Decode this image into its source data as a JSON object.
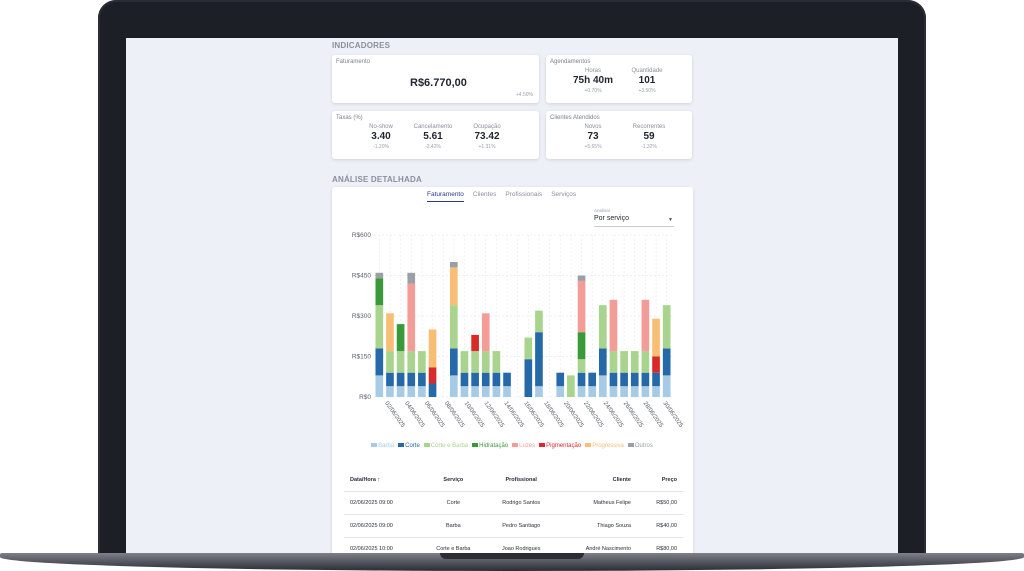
{
  "indicators": {
    "section_title": "INDICADORES",
    "faturamento": {
      "title": "Faturamento",
      "value": "R$6.770,00",
      "change": "+4.50%"
    },
    "agendamentos": {
      "title": "Agendamentos",
      "metrics": [
        {
          "label": "Horas",
          "value": "75h 40m",
          "change": "+0.70%"
        },
        {
          "label": "Quantidade",
          "value": "101",
          "change": "+3.50%"
        }
      ]
    },
    "taxas": {
      "title": "Taxas (%)",
      "metrics": [
        {
          "label": "No-show",
          "value": "3.40",
          "change": "-1.20%"
        },
        {
          "label": "Cancelamento",
          "value": "5.61",
          "change": "-2.42%"
        },
        {
          "label": "Ocupação",
          "value": "73.42",
          "change": "+1.31%"
        }
      ]
    },
    "clientes": {
      "title": "Clientes Atendidos",
      "metrics": [
        {
          "label": "Novos",
          "value": "73",
          "change": "+5.65%"
        },
        {
          "label": "Recorrentes",
          "value": "59",
          "change": "-1.32%"
        }
      ]
    }
  },
  "analysis": {
    "section_title": "ANÁLISE DETALHADA",
    "tabs": [
      "Faturamento",
      "Clientes",
      "Profissionais",
      "Serviços"
    ],
    "active_tab": 0,
    "select_label": "Analisar",
    "select_value": "Por serviço"
  },
  "colors": {
    "Barba": "#a8cbe5",
    "Corte": "#2669a8",
    "Corte e Barba": "#a8d48d",
    "Hidratação": "#3a9a3a",
    "Luzes": "#f39c98",
    "Pigmentação": "#d92a2a",
    "Progressiva": "#f7be74",
    "Outros": "#9aa0a6"
  },
  "chart_data": {
    "type": "bar",
    "stacked": true,
    "ylim": [
      0,
      600
    ],
    "yticks": [
      "R$0",
      "R$150",
      "R$300",
      "R$450",
      "R$600"
    ],
    "ytick_values": [
      0,
      150,
      300,
      450,
      600
    ],
    "xticks": [
      "02/06/2025",
      "04/06/2025",
      "06/06/2025",
      "08/06/2025",
      "10/06/2025",
      "12/06/2025",
      "14/06/2025",
      "16/06/2025",
      "18/06/2025",
      "20/06/2025",
      "22/06/2025",
      "24/06/2025",
      "26/06/2025",
      "28/06/2025",
      "30/06/2025"
    ],
    "grid": true,
    "legend_position": "bottom",
    "series_order": [
      "Barba",
      "Corte",
      "Corte e Barba",
      "Hidratação",
      "Luzes",
      "Pigmentação",
      "Progressiva",
      "Outros"
    ],
    "bars": [
      {
        "Barba": 80,
        "Corte": 100,
        "Corte e Barba": 160,
        "Hidratação": 100,
        "Outros": 20
      },
      {
        "Barba": 40,
        "Corte": 50,
        "Corte e Barba": 80,
        "Progressiva": 140
      },
      {
        "Barba": 40,
        "Corte": 50,
        "Corte e Barba": 80,
        "Hidratação": 100
      },
      {
        "Barba": 40,
        "Corte": 50,
        "Corte e Barba": 80,
        "Luzes": 250,
        "Outros": 40
      },
      {
        "Barba": 40,
        "Corte": 50,
        "Corte e Barba": 80
      },
      {
        "Corte": 50,
        "Pigmentação": 60,
        "Progressiva": 140
      },
      {},
      {
        "Barba": 80,
        "Corte": 100,
        "Corte e Barba": 160,
        "Progressiva": 140,
        "Outros": 20
      },
      {
        "Barba": 40,
        "Corte": 50,
        "Corte e Barba": 80
      },
      {
        "Barba": 40,
        "Corte": 50,
        "Corte e Barba": 80,
        "Pigmentação": 60
      },
      {
        "Barba": 40,
        "Corte": 50,
        "Corte e Barba": 80,
        "Luzes": 140
      },
      {
        "Barba": 40,
        "Corte": 50,
        "Corte e Barba": 80
      },
      {
        "Barba": 40,
        "Corte": 50
      },
      {},
      {
        "Corte": 140,
        "Corte e Barba": 80
      },
      {
        "Barba": 40,
        "Corte": 200,
        "Corte e Barba": 80
      },
      {},
      {
        "Barba": 40,
        "Corte": 50
      },
      {
        "Corte e Barba": 80
      },
      {
        "Barba": 40,
        "Corte": 50,
        "Corte e Barba": 50,
        "Hidratação": 100,
        "Luzes": 190,
        "Outros": 20
      },
      {
        "Barba": 40,
        "Corte": 50
      },
      {
        "Barba": 80,
        "Corte": 100,
        "Corte e Barba": 160
      },
      {
        "Barba": 40,
        "Corte": 50,
        "Corte e Barba": 80,
        "Luzes": 190
      },
      {
        "Barba": 40,
        "Corte": 50,
        "Corte e Barba": 80
      },
      {
        "Barba": 40,
        "Corte": 50,
        "Corte e Barba": 80
      },
      {
        "Barba": 40,
        "Corte": 50,
        "Corte e Barba": 80,
        "Luzes": 190
      },
      {
        "Barba": 40,
        "Corte": 50,
        "Pigmentação": 60,
        "Progressiva": 140
      },
      {
        "Barba": 80,
        "Corte": 100,
        "Corte e Barba": 160
      }
    ]
  },
  "legend": [
    "Barba",
    "Corte",
    "Corte e Barba",
    "Hidratação",
    "Luzes",
    "Pigmentação",
    "Progressiva",
    "Outros"
  ],
  "table": {
    "headers": [
      "Data/Hora ↑",
      "Serviço",
      "Profissional",
      "Cliente",
      "Preço"
    ],
    "rows": [
      [
        "02/06/2025 09:00",
        "Corte",
        "Rodrigo Santos",
        "Matheus Felipe",
        "R$50,00"
      ],
      [
        "02/06/2025 09:00",
        "Barba",
        "Pedro Santiago",
        "Thiago Souza",
        "R$40,00"
      ],
      [
        "02/06/2025 10:00",
        "Corte e Barba",
        "Joao Rodrigues",
        "André Nascimento",
        "R$80,00"
      ]
    ]
  }
}
